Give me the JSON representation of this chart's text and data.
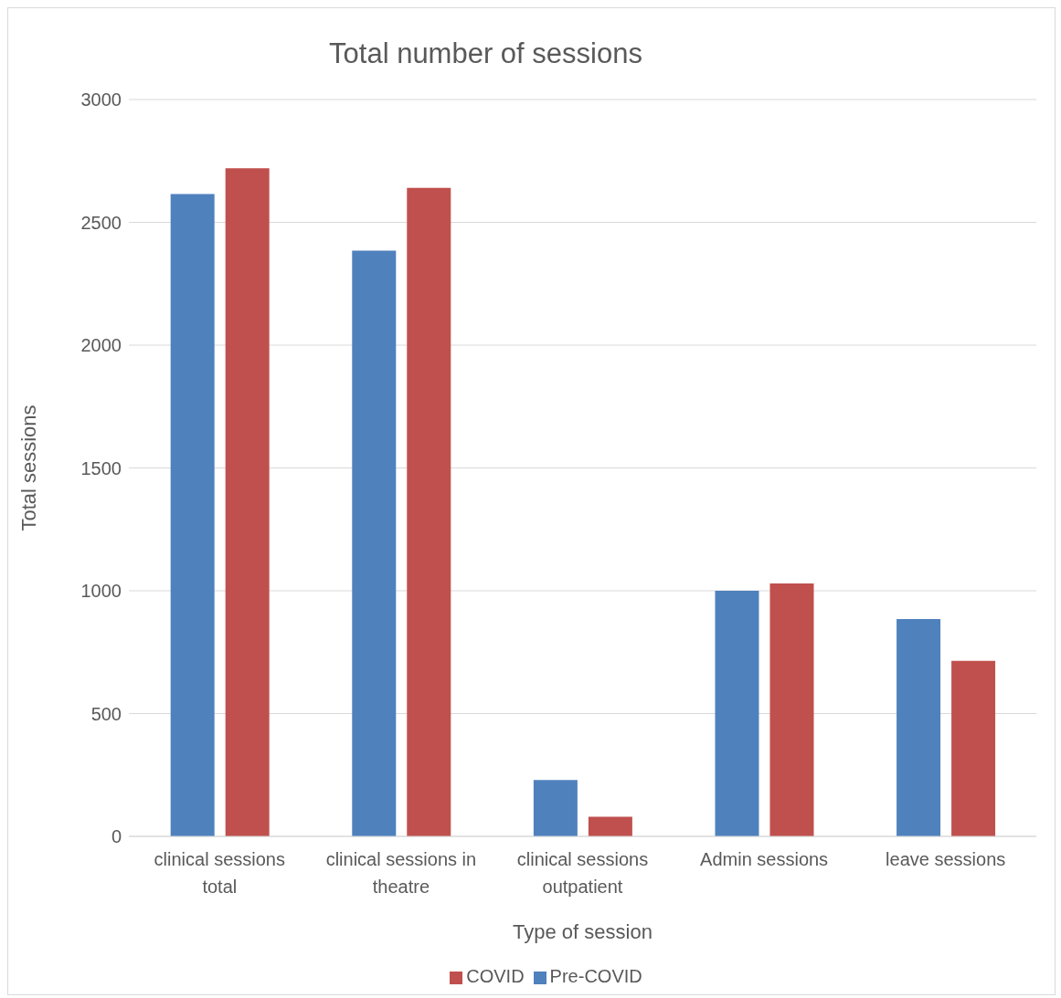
{
  "chart_data": {
    "type": "bar",
    "title": "Total number of sessions",
    "xlabel": "Type of session",
    "ylabel": "Total sessions",
    "categories": [
      "clinical sessions total",
      "clinical sessions in theatre",
      "clinical sessions outpatient",
      "Admin sessions",
      "leave sessions"
    ],
    "series": [
      {
        "name": "Pre-COVID",
        "color": "#4f81bd",
        "values": [
          2615,
          2385,
          230,
          1000,
          885
        ]
      },
      {
        "name": "COVID",
        "color": "#c0504d",
        "values": [
          2720,
          2640,
          80,
          1030,
          715
        ]
      }
    ],
    "ylim": [
      0,
      3000
    ],
    "yticks": [
      0,
      500,
      1000,
      1500,
      2000,
      2500,
      3000
    ],
    "grid": "y",
    "legend": "bottom"
  }
}
